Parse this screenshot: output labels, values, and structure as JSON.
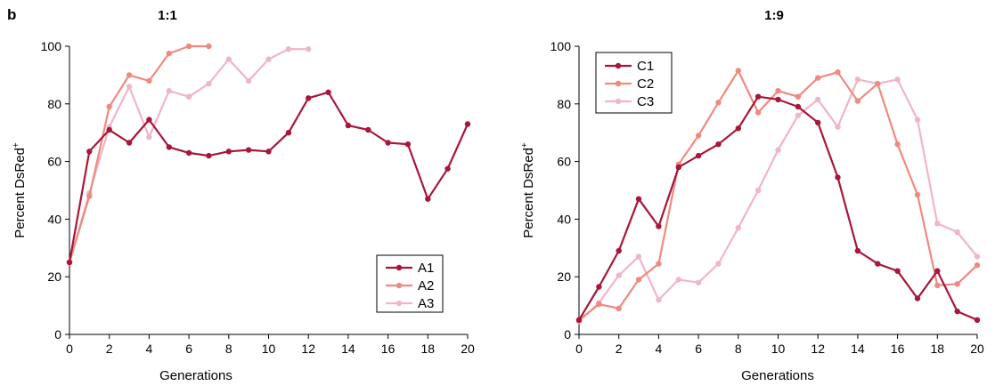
{
  "panel_label": "b",
  "chart_data": [
    {
      "type": "line",
      "title": "1:1",
      "xlabel": "Generations",
      "ylabel_main": "Percent DsRed",
      "ylabel_sup": "+",
      "xlim": [
        0,
        20
      ],
      "ylim": [
        0,
        100
      ],
      "xticks": [
        0,
        2,
        4,
        6,
        8,
        10,
        12,
        14,
        16,
        18,
        20
      ],
      "yticks": [
        0,
        20,
        40,
        60,
        80,
        100
      ],
      "grid": false,
      "legend_position": "bottom-right",
      "series": [
        {
          "name": "A1",
          "color": "#a8163a",
          "x": [
            0,
            1,
            2,
            3,
            4,
            5,
            6,
            7,
            8,
            9,
            10,
            11,
            12,
            13,
            14,
            15,
            16,
            17,
            18,
            19,
            20
          ],
          "y": [
            25,
            63.5,
            71,
            66.5,
            74.5,
            65,
            63,
            62,
            63.5,
            64,
            63.5,
            70,
            82,
            84,
            72.5,
            71,
            66.5,
            66,
            47,
            57.5,
            73
          ]
        },
        {
          "name": "A2",
          "color": "#ef8a80",
          "x": [
            0,
            1,
            2,
            3,
            4,
            5,
            6,
            7
          ],
          "y": [
            25,
            48,
            79,
            90,
            88,
            97.5,
            100,
            100
          ]
        },
        {
          "name": "A3",
          "color": "#f0b5c8",
          "x": [
            0,
            1,
            2,
            3,
            4,
            5,
            6,
            7,
            8,
            9,
            10,
            11,
            12
          ],
          "y": [
            25,
            49,
            72,
            86,
            68.5,
            84.5,
            82.5,
            87,
            95.5,
            88,
            95.5,
            99,
            99
          ]
        }
      ]
    },
    {
      "type": "line",
      "title": "1:9",
      "xlabel": "Generations",
      "ylabel_main": "Percent DsRed",
      "ylabel_sup": "+",
      "xlim": [
        0,
        20
      ],
      "ylim": [
        0,
        100
      ],
      "xticks": [
        0,
        2,
        4,
        6,
        8,
        10,
        12,
        14,
        16,
        18,
        20
      ],
      "yticks": [
        0,
        20,
        40,
        60,
        80,
        100
      ],
      "grid": false,
      "legend_position": "top-left",
      "series": [
        {
          "name": "C1",
          "color": "#a8163a",
          "x": [
            0,
            1,
            2,
            3,
            4,
            5,
            6,
            7,
            8,
            9,
            10,
            11,
            12,
            13,
            14,
            15,
            16,
            17,
            18,
            19,
            20
          ],
          "y": [
            5,
            16.5,
            29,
            47,
            37.5,
            58,
            62,
            66,
            71.5,
            82.5,
            81.5,
            79,
            73.5,
            54.5,
            29,
            24.5,
            22,
            12.5,
            22,
            8,
            5
          ]
        },
        {
          "name": "C2",
          "color": "#ef8a80",
          "x": [
            0,
            1,
            2,
            3,
            4,
            5,
            6,
            7,
            8,
            9,
            10,
            11,
            12,
            13,
            14,
            15,
            16,
            17,
            18,
            19,
            20
          ],
          "y": [
            5,
            10.5,
            9,
            19,
            24.5,
            59,
            69,
            80.5,
            91.5,
            77,
            84.5,
            82.5,
            89,
            91,
            81,
            87,
            66,
            48.5,
            17,
            17.5,
            24
          ]
        },
        {
          "name": "C3",
          "color": "#f0b5c8",
          "x": [
            0,
            1,
            2,
            3,
            4,
            5,
            6,
            7,
            8,
            9,
            10,
            11,
            12,
            13,
            14,
            15,
            16,
            17,
            18,
            19,
            20
          ],
          "y": [
            4.5,
            11,
            20.5,
            27,
            12,
            19,
            18,
            24.5,
            37,
            50,
            64,
            76,
            81.5,
            72,
            88.5,
            87,
            88.5,
            74.5,
            38.5,
            35.5,
            27
          ]
        }
      ]
    }
  ]
}
